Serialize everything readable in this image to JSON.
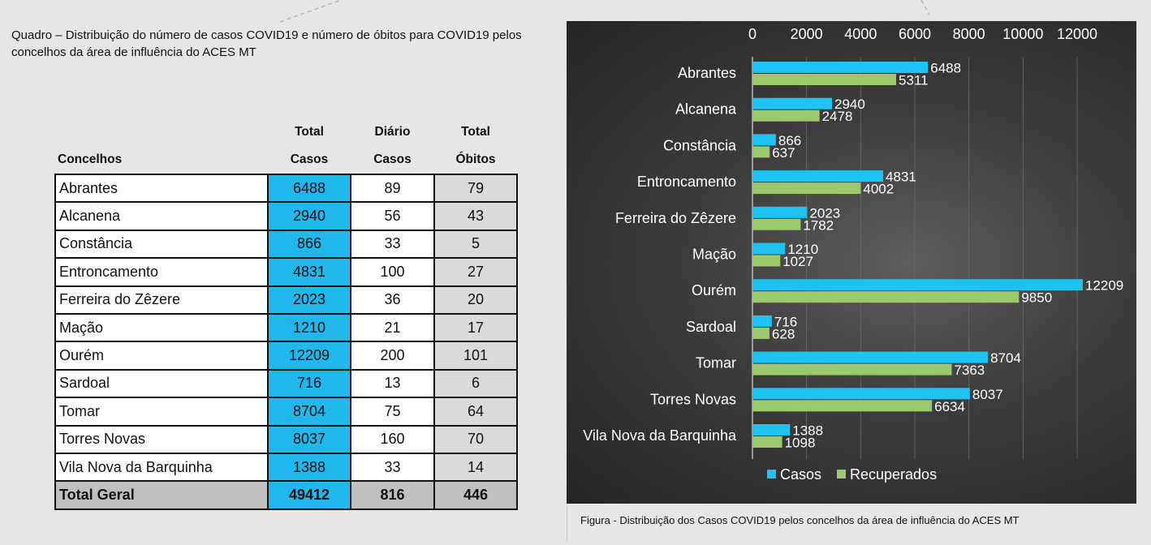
{
  "caption_top": "Quadro – Distribuição do número de casos COVID19 e número de óbitos para COVID19 pelos concelhos da área de influência do ACES MT",
  "table": {
    "headers": {
      "concelhos": "Concelhos",
      "total_casos_1": "Total",
      "total_casos_2": "Casos",
      "diario_casos_1": "Diário",
      "diario_casos_2": "Casos",
      "total_obitos_1": "Total",
      "total_obitos_2": "Óbitos"
    },
    "rows": [
      {
        "name": "Abrantes",
        "total_casos": "6488",
        "diario_casos": "89",
        "total_obitos": "79"
      },
      {
        "name": "Alcanena",
        "total_casos": "2940",
        "diario_casos": "56",
        "total_obitos": "43"
      },
      {
        "name": "Constância",
        "total_casos": "866",
        "diario_casos": "33",
        "total_obitos": "5"
      },
      {
        "name": "Entroncamento",
        "total_casos": "4831",
        "diario_casos": "100",
        "total_obitos": "27"
      },
      {
        "name": "Ferreira do Zêzere",
        "total_casos": "2023",
        "diario_casos": "36",
        "total_obitos": "20"
      },
      {
        "name": "Mação",
        "total_casos": "1210",
        "diario_casos": "21",
        "total_obitos": "17"
      },
      {
        "name": "Ourém",
        "total_casos": "12209",
        "diario_casos": "200",
        "total_obitos": "101"
      },
      {
        "name": "Sardoal",
        "total_casos": "716",
        "diario_casos": "13",
        "total_obitos": "6"
      },
      {
        "name": "Tomar",
        "total_casos": "8704",
        "diario_casos": "75",
        "total_obitos": "64"
      },
      {
        "name": "Torres Novas",
        "total_casos": "8037",
        "diario_casos": "160",
        "total_obitos": "70"
      },
      {
        "name": "Vila Nova da Barquinha",
        "total_casos": "1388",
        "diario_casos": "33",
        "total_obitos": "14"
      }
    ],
    "total": {
      "name": "Total Geral",
      "total_casos": "49412",
      "diario_casos": "816",
      "total_obitos": "446"
    }
  },
  "chart_data": {
    "type": "bar",
    "orientation": "horizontal",
    "categories": [
      "Abrantes",
      "Alcanena",
      "Constância",
      "Entroncamento",
      "Ferreira do Zêzere",
      "Mação",
      "Ourém",
      "Sardoal",
      "Tomar",
      "Torres Novas",
      "Vila Nova da Barquinha"
    ],
    "series": [
      {
        "name": "Casos",
        "values": [
          6488,
          2940,
          866,
          4831,
          2023,
          1210,
          12209,
          716,
          8704,
          8037,
          1388
        ]
      },
      {
        "name": "Recuperados",
        "values": [
          5311,
          2478,
          637,
          4002,
          1782,
          1027,
          9850,
          628,
          7363,
          6634,
          1098
        ]
      }
    ],
    "xticks": [
      0,
      2000,
      4000,
      6000,
      8000,
      10000,
      12000
    ],
    "xlim": [
      0,
      12000
    ],
    "axis_position": "top",
    "grid": true,
    "legend": "bottom",
    "colors": {
      "Casos": "#1cc3f3",
      "Recuperados": "#9cc96b"
    }
  },
  "chart_caption": "Figura -  Distribuição dos Casos COVID19 pelos concelhos da área de influência do ACES MT"
}
